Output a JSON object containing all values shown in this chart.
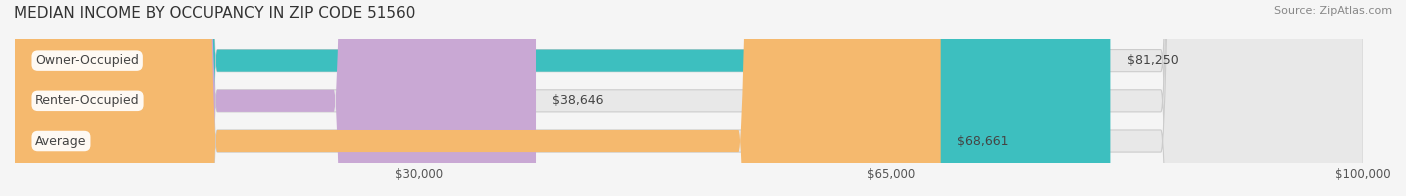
{
  "title": "MEDIAN INCOME BY OCCUPANCY IN ZIP CODE 51560",
  "source": "Source: ZipAtlas.com",
  "categories": [
    "Owner-Occupied",
    "Renter-Occupied",
    "Average"
  ],
  "values": [
    81250,
    38646,
    68661
  ],
  "labels": [
    "$81,250",
    "$38,646",
    "$68,661"
  ],
  "bar_colors": [
    "#3dbfbf",
    "#c9a8d4",
    "#f5b96e"
  ],
  "bar_bg_colors": [
    "#e8e8e8",
    "#e8e8e8",
    "#e8e8e8"
  ],
  "xlim": [
    0,
    100000
  ],
  "xticks": [
    30000,
    65000,
    100000
  ],
  "xtick_labels": [
    "$30,000",
    "$65,000",
    "$100,000"
  ],
  "figsize": [
    14.06,
    1.96
  ],
  "dpi": 100,
  "background_color": "#f5f5f5",
  "bar_height": 0.55,
  "title_fontsize": 11,
  "label_fontsize": 9,
  "tick_fontsize": 8.5,
  "source_fontsize": 8
}
